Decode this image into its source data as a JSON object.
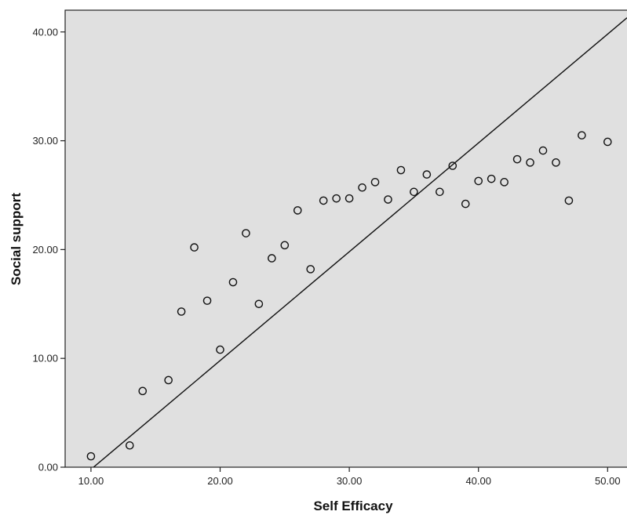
{
  "chart_data": {
    "type": "scatter",
    "xlabel": "Self Efficacy",
    "ylabel": "Social support",
    "xlim": [
      8,
      51.5
    ],
    "ylim": [
      0,
      42
    ],
    "x_ticks": [
      {
        "value": 10,
        "label": "10.00"
      },
      {
        "value": 20,
        "label": "20.00"
      },
      {
        "value": 30,
        "label": "30.00"
      },
      {
        "value": 40,
        "label": "40.00"
      },
      {
        "value": 50,
        "label": "50.00"
      }
    ],
    "y_ticks": [
      {
        "value": 0,
        "label": "0.00"
      },
      {
        "value": 10,
        "label": "10.00"
      },
      {
        "value": 20,
        "label": "20.00"
      },
      {
        "value": 30,
        "label": "30.00"
      },
      {
        "value": 40,
        "label": "40.00"
      }
    ],
    "grid": false,
    "background_color": "#e0e0e0",
    "marker_color": "#111111",
    "points": [
      {
        "x": 10,
        "y": 1.0
      },
      {
        "x": 13,
        "y": 2.0
      },
      {
        "x": 14,
        "y": 7.0
      },
      {
        "x": 16,
        "y": 8.0
      },
      {
        "x": 17,
        "y": 14.3
      },
      {
        "x": 18,
        "y": 20.2
      },
      {
        "x": 19,
        "y": 15.3
      },
      {
        "x": 20,
        "y": 10.8
      },
      {
        "x": 21,
        "y": 17.0
      },
      {
        "x": 22,
        "y": 21.5
      },
      {
        "x": 23,
        "y": 15.0
      },
      {
        "x": 24,
        "y": 19.2
      },
      {
        "x": 25,
        "y": 20.4
      },
      {
        "x": 26,
        "y": 23.6
      },
      {
        "x": 27,
        "y": 18.2
      },
      {
        "x": 28,
        "y": 24.5
      },
      {
        "x": 29,
        "y": 24.7
      },
      {
        "x": 30,
        "y": 24.7
      },
      {
        "x": 31,
        "y": 25.7
      },
      {
        "x": 32,
        "y": 26.2
      },
      {
        "x": 33,
        "y": 24.6
      },
      {
        "x": 34,
        "y": 27.3
      },
      {
        "x": 35,
        "y": 25.3
      },
      {
        "x": 36,
        "y": 26.9
      },
      {
        "x": 37,
        "y": 25.3
      },
      {
        "x": 38,
        "y": 27.7
      },
      {
        "x": 39,
        "y": 24.2
      },
      {
        "x": 40,
        "y": 26.3
      },
      {
        "x": 41,
        "y": 26.5
      },
      {
        "x": 42,
        "y": 26.2
      },
      {
        "x": 43,
        "y": 28.3
      },
      {
        "x": 44,
        "y": 28.0
      },
      {
        "x": 45,
        "y": 29.1
      },
      {
        "x": 46,
        "y": 28.0
      },
      {
        "x": 47,
        "y": 24.5
      },
      {
        "x": 48,
        "y": 30.5
      },
      {
        "x": 50,
        "y": 29.9
      }
    ],
    "reference_line": {
      "from": {
        "x": 10.2,
        "y": 0
      },
      "to": {
        "x": 51.5,
        "y": 41.3
      }
    }
  }
}
